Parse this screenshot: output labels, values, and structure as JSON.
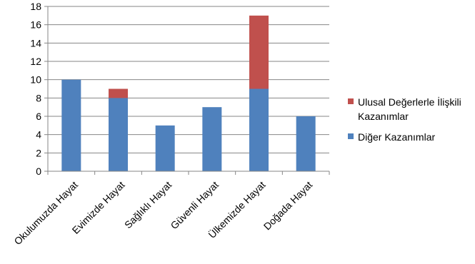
{
  "chart_data": {
    "type": "bar",
    "stacked": true,
    "categories": [
      "Okulumuzda Hayat",
      "Evimizde Hayat",
      "Sağlıklı Hayat",
      "Güvenli Hayat",
      "Ülkemizde Hayat",
      "Doğada Hayat"
    ],
    "series": [
      {
        "name": "Diğer Kazanımlar",
        "values": [
          10,
          8,
          5,
          7,
          9,
          6
        ],
        "color": "#4F81BD"
      },
      {
        "name": "Ulusal Değerlerle İlişkili Kazanımlar",
        "values": [
          0,
          1,
          0,
          0,
          8,
          0
        ],
        "color": "#C0504D"
      }
    ],
    "ylim": [
      0,
      18
    ],
    "yticks": [
      "0",
      "2",
      "4",
      "6",
      "8",
      "10",
      "12",
      "14",
      "16",
      "18"
    ],
    "grid": true,
    "legend_position": "right"
  },
  "legend": [
    {
      "label": "Ulusal Değerlerle İlişkili Kazanımlar",
      "color": "#C0504D"
    },
    {
      "label": "Diğer Kazanımlar",
      "color": "#4F81BD"
    }
  ]
}
